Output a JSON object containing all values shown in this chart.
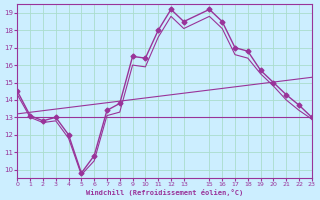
{
  "xlabel": "Windchill (Refroidissement éolien,°C)",
  "background_color": "#cceeff",
  "grid_color": "#aaddcc",
  "line_color": "#993399",
  "xlim": [
    0,
    23
  ],
  "ylim": [
    9.5,
    19.5
  ],
  "xticks": [
    0,
    1,
    2,
    3,
    4,
    5,
    6,
    7,
    8,
    9,
    10,
    11,
    12,
    13,
    15,
    16,
    17,
    18,
    19,
    20,
    21,
    22,
    23
  ],
  "ytick_labels": [
    "10",
    "11",
    "12",
    "13",
    "14",
    "15",
    "16",
    "17",
    "18",
    "19"
  ],
  "yticks": [
    10,
    11,
    12,
    13,
    14,
    15,
    16,
    17,
    18,
    19
  ],
  "lines": [
    {
      "x": [
        0,
        1,
        2,
        3,
        4,
        5,
        6,
        7,
        8,
        9,
        10,
        11,
        12,
        13,
        15,
        16,
        17,
        18,
        19,
        20,
        21,
        22,
        23
      ],
      "y": [
        14.5,
        13.1,
        12.8,
        13.0,
        12.0,
        9.8,
        10.8,
        13.4,
        13.8,
        16.5,
        16.4,
        18.0,
        19.2,
        18.5,
        19.2,
        18.5,
        17.0,
        16.8,
        15.7,
        15.0,
        14.3,
        13.7,
        13.0
      ],
      "marker": "D",
      "markersize": 2.5,
      "linewidth": 1.0
    },
    {
      "x": [
        0,
        1,
        2,
        3,
        4,
        5,
        6,
        7,
        8,
        9,
        10,
        11,
        12,
        13,
        15,
        16,
        17,
        18,
        19,
        20,
        21,
        22,
        23
      ],
      "y": [
        14.3,
        13.0,
        12.7,
        12.8,
        11.8,
        9.7,
        10.5,
        13.1,
        13.3,
        16.0,
        15.9,
        17.6,
        18.8,
        18.1,
        18.8,
        18.1,
        16.6,
        16.4,
        15.5,
        14.8,
        14.0,
        13.4,
        12.9
      ],
      "marker": null,
      "markersize": 0,
      "linewidth": 0.8
    },
    {
      "x": [
        0,
        23
      ],
      "y": [
        13.2,
        15.3
      ],
      "marker": null,
      "markersize": 0,
      "linewidth": 0.8
    },
    {
      "x": [
        0,
        23
      ],
      "y": [
        13.0,
        13.0
      ],
      "marker": null,
      "markersize": 0,
      "linewidth": 0.8
    }
  ]
}
